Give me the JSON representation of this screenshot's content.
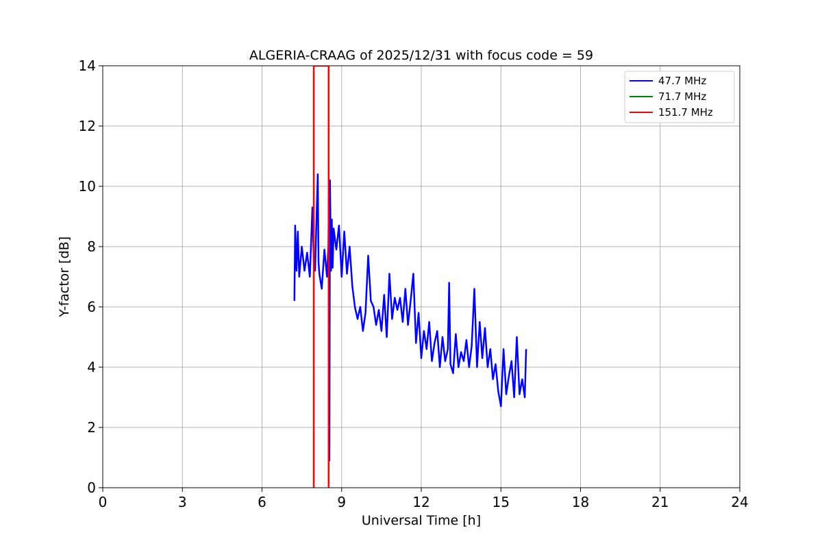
{
  "chart_data": {
    "type": "line",
    "title": "ALGERIA-CRAAG of 2025/12/31 with focus code = 59",
    "xlabel": "Universal Time [h]",
    "ylabel": "Y-factor [dB]",
    "xlim": [
      0,
      24
    ],
    "ylim": [
      0,
      14
    ],
    "xticks": [
      0,
      3,
      6,
      9,
      12,
      15,
      18,
      21,
      24
    ],
    "yticks": [
      0,
      2,
      4,
      6,
      8,
      10,
      12,
      14
    ],
    "xtick_labels": [
      "0",
      "3",
      "6",
      "9",
      "12",
      "15",
      "18",
      "21",
      "24"
    ],
    "ytick_labels": [
      "0",
      "2",
      "4",
      "6",
      "8",
      "10",
      "12",
      "14"
    ],
    "grid": true,
    "legend_position": "top-right",
    "series": [
      {
        "name": "  47.7 MHz",
        "color": "#0000ff",
        "x": [
          7.22,
          7.25,
          7.3,
          7.35,
          7.4,
          7.5,
          7.6,
          7.7,
          7.8,
          7.9,
          7.95,
          8.0,
          8.05,
          8.1,
          8.13,
          8.16,
          8.25,
          8.35,
          8.45,
          8.5,
          8.52,
          8.54,
          8.56,
          8.6,
          8.63,
          8.66,
          8.7,
          8.8,
          8.9,
          9.0,
          9.1,
          9.2,
          9.3,
          9.4,
          9.5,
          9.6,
          9.7,
          9.8,
          9.9,
          10.0,
          10.1,
          10.2,
          10.3,
          10.4,
          10.5,
          10.6,
          10.7,
          10.8,
          10.9,
          11.0,
          11.1,
          11.2,
          11.3,
          11.4,
          11.5,
          11.6,
          11.7,
          11.8,
          11.9,
          12.0,
          12.1,
          12.2,
          12.3,
          12.4,
          12.5,
          12.6,
          12.7,
          12.8,
          12.9,
          13.0,
          13.05,
          13.1,
          13.2,
          13.3,
          13.4,
          13.5,
          13.6,
          13.7,
          13.8,
          13.9,
          14.0,
          14.1,
          14.2,
          14.3,
          14.4,
          14.5,
          14.6,
          14.7,
          14.8,
          14.9,
          15.0,
          15.1,
          15.2,
          15.3,
          15.4,
          15.5,
          15.6,
          15.7,
          15.8,
          15.9,
          15.95
        ],
        "y": [
          6.2,
          8.7,
          7.2,
          8.5,
          7.0,
          8.0,
          7.2,
          7.8,
          7.0,
          9.3,
          7.5,
          7.2,
          8.8,
          10.4,
          7.5,
          7.1,
          6.6,
          7.9,
          7.0,
          8.0,
          9.5,
          0.9,
          10.2,
          7.2,
          8.9,
          7.3,
          8.6,
          7.9,
          8.7,
          7.0,
          8.5,
          7.1,
          8.0,
          6.7,
          6.0,
          5.6,
          6.0,
          5.2,
          5.8,
          7.7,
          6.2,
          6.0,
          5.4,
          5.9,
          5.2,
          6.4,
          5.0,
          7.1,
          5.6,
          6.3,
          5.9,
          6.3,
          5.5,
          6.6,
          5.4,
          6.2,
          7.1,
          4.8,
          5.8,
          4.3,
          5.2,
          4.6,
          5.5,
          4.2,
          4.8,
          5.2,
          4.0,
          5.0,
          4.2,
          4.6,
          6.8,
          4.1,
          3.8,
          5.1,
          4.0,
          4.5,
          4.2,
          4.9,
          4.0,
          4.7,
          6.6,
          4.0,
          5.5,
          4.3,
          5.3,
          4.0,
          4.6,
          3.6,
          4.1,
          3.2,
          2.7,
          4.6,
          3.1,
          3.7,
          4.2,
          3.0,
          5.0,
          3.1,
          3.6,
          3.0,
          4.6
        ]
      },
      {
        "name": "  71.7 MHz",
        "color": "#008000",
        "x": [],
        "y": []
      },
      {
        "name": "  151.7 MHz",
        "color": "#ff0000",
        "x": [
          7.95,
          7.95,
          8.51,
          8.51
        ],
        "y": [
          0,
          14,
          14,
          0
        ]
      }
    ]
  }
}
